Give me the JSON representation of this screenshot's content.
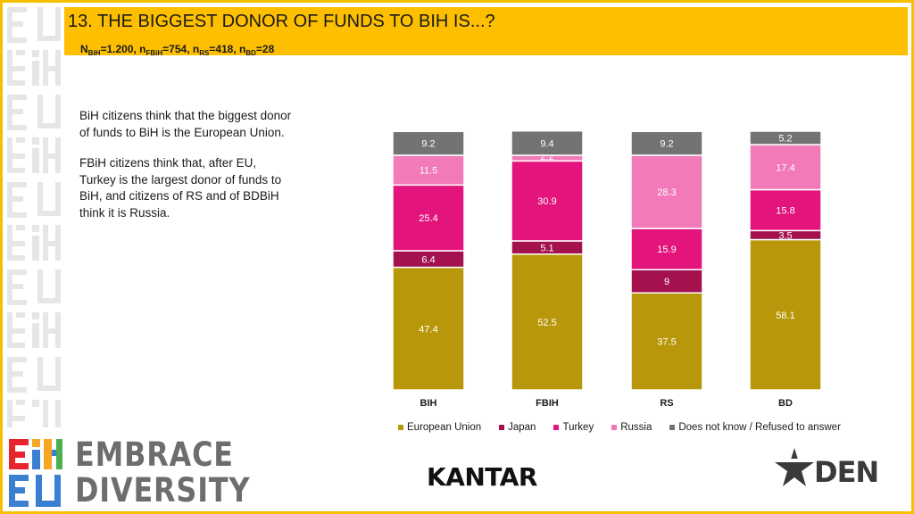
{
  "header": {
    "title": "13. THE BIGGEST DONOR OF FUNDS TO BIH IS...?",
    "sample": {
      "n1": "N",
      "s1": "BiH",
      "v1": "=1.200, n",
      "s2": "FBiH",
      "v2": "=754, n",
      "s3": "RS",
      "v3": "=418, n",
      "s4": "BD",
      "v4": "=28"
    }
  },
  "narrative": {
    "p1": "BiH citizens think that the biggest donor of funds to BiH is the European Union.",
    "p2": "FBiH citizens think that, after EU, Turkey is the largest donor of funds to BiH, and citizens of RS and of BDBiH think it is Russia."
  },
  "colors": {
    "header_bg": "#fdbf00",
    "European Union": "#b8980a",
    "Japan": "#a3114f",
    "Turkey": "#e3147c",
    "Russia": "#f27ab8",
    "Does not know / Refused to answer": "#737373"
  },
  "chart_data": {
    "type": "bar",
    "stacked": true,
    "categories": [
      "BIH",
      "FBIH",
      "RS",
      "BD"
    ],
    "series": [
      {
        "name": "European Union",
        "values": [
          47.4,
          52.5,
          37.5,
          58.1
        ]
      },
      {
        "name": "Japan",
        "values": [
          6.4,
          5.1,
          9.0,
          3.5
        ]
      },
      {
        "name": "Turkey",
        "values": [
          25.4,
          30.9,
          15.9,
          15.8
        ]
      },
      {
        "name": "Russia",
        "values": [
          11.5,
          2.2,
          28.3,
          17.4
        ]
      },
      {
        "name": "Does not know / Refused to answer",
        "values": [
          9.2,
          9.4,
          9.2,
          5.2
        ]
      }
    ],
    "ylim": [
      0,
      100
    ],
    "legend_position": "bottom",
    "grid": false
  },
  "legend": [
    {
      "label": "European Union",
      "color": "#b8980a"
    },
    {
      "label": "Japan",
      "color": "#a3114f"
    },
    {
      "label": "Turkey",
      "color": "#e3147c"
    },
    {
      "label": "Russia",
      "color": "#f27ab8"
    },
    {
      "label": "Does not know / Refused to answer",
      "color": "#737373"
    }
  ],
  "logos": {
    "embrace_line1": "EMBRACE",
    "embrace_line2": "DIVERSITY",
    "kantar": "KANTAR",
    "den": "DEN"
  }
}
